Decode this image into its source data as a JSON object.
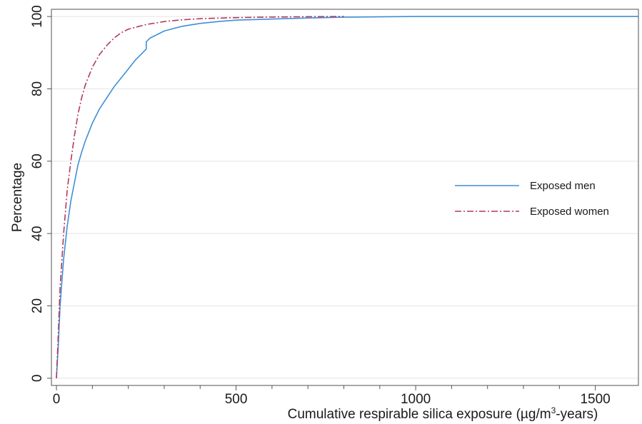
{
  "chart_data": {
    "type": "line",
    "title": "",
    "xlabel": "Cumulative respirable silica exposure (µg/m",
    "xlabel_sup": "3",
    "xlabel_suffix": "-years)",
    "ylabel": "Percentage",
    "xlim": [
      -14,
      1620
    ],
    "ylim": [
      -2,
      102
    ],
    "x_major_ticks": [
      0,
      500,
      1000,
      1500
    ],
    "x_major_tick_labels": [
      "0",
      "500",
      "1000",
      "1500"
    ],
    "x_minor_ticks": [
      100,
      200,
      300,
      400,
      600,
      700,
      800,
      900,
      1100,
      1200,
      1300,
      1400
    ],
    "y_ticks": [
      0,
      20,
      40,
      60,
      80,
      100
    ],
    "y_tick_labels": [
      "0",
      "20",
      "40",
      "60",
      "80",
      "100"
    ],
    "grid": "horizontal",
    "legend_position": "right",
    "series": [
      {
        "name": "Exposed men",
        "color": "#3f8fd6",
        "style": "solid",
        "x": [
          0,
          5,
          10,
          20,
          30,
          40,
          50,
          60,
          70,
          80,
          90,
          100,
          120,
          140,
          160,
          180,
          200,
          220,
          240,
          250,
          250,
          260,
          280,
          300,
          350,
          400,
          450,
          500,
          600,
          700,
          800,
          900,
          1000,
          1200,
          1400,
          1620
        ],
        "y": [
          0,
          9,
          20,
          33,
          42,
          49,
          54,
          59,
          62.5,
          65.5,
          68,
          70.5,
          74.5,
          77.5,
          80.5,
          83,
          85.5,
          88,
          90,
          91,
          93,
          94,
          95,
          96,
          97.3,
          98.1,
          98.6,
          99,
          99.3,
          99.6,
          99.8,
          99.9,
          100,
          100,
          100,
          100
        ]
      },
      {
        "name": "Exposed women",
        "color": "#b33a5e",
        "style": "dashdot",
        "x": [
          0,
          5,
          10,
          20,
          30,
          40,
          50,
          60,
          70,
          80,
          100,
          120,
          140,
          160,
          180,
          200,
          250,
          300,
          350,
          400,
          500,
          600,
          700,
          800
        ],
        "y": [
          0,
          12,
          25,
          40,
          52,
          60,
          67,
          73,
          77.5,
          81,
          86,
          89.5,
          92,
          94,
          95.5,
          96.5,
          97.8,
          98.6,
          99.1,
          99.4,
          99.7,
          99.85,
          99.95,
          100
        ]
      }
    ]
  }
}
